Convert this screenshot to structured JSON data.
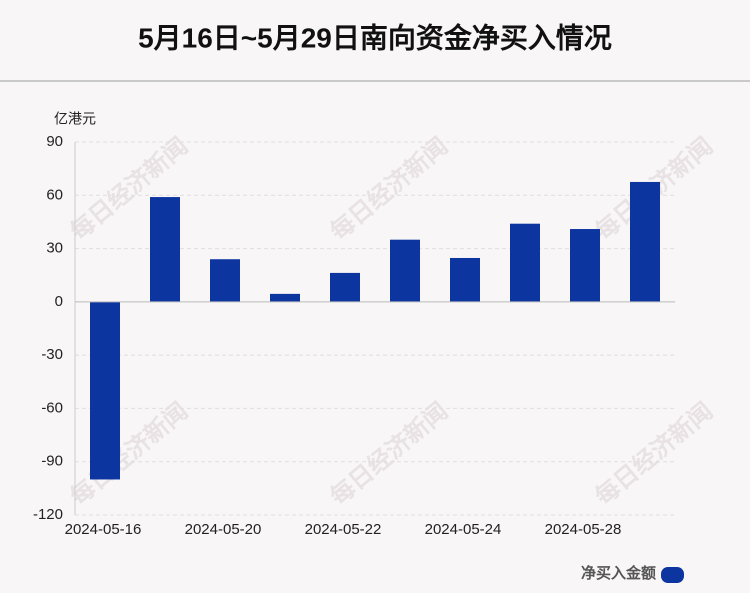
{
  "chart_data": {
    "type": "bar",
    "title": "5月16日~5月29日南向资金净买入情况",
    "y_unit": "亿港元",
    "watermark": "每日经济新闻",
    "categories": [
      "2024-05-16",
      null,
      "2024-05-20",
      null,
      "2024-05-22",
      null,
      "2024-05-24",
      null,
      "2024-05-28",
      null
    ],
    "series": [
      {
        "name": "净买入金额",
        "color": "#0d35a0",
        "values": [
          -100,
          59,
          24,
          4.5,
          16.3,
          35,
          24.7,
          44,
          41,
          67.5
        ]
      }
    ],
    "ylim": [
      -120,
      90
    ],
    "yticks": [
      -120,
      -90,
      -60,
      -30,
      0,
      30,
      60,
      90
    ],
    "grid": true,
    "legend": "bottom-right"
  }
}
